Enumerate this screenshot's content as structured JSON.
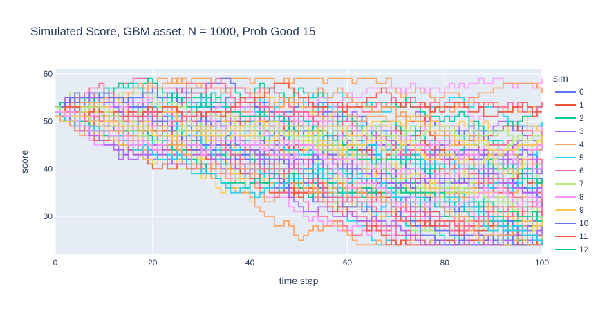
{
  "chart_data": {
    "type": "line",
    "title": "Simulated Score, GBM asset, N = 1000, Prob Good 15",
    "xlabel": "time step",
    "ylabel": "score",
    "xlim": [
      0,
      100
    ],
    "ylim": [
      22,
      61
    ],
    "x_ticks": [
      0,
      20,
      40,
      60,
      80,
      100
    ],
    "y_ticks": [
      30,
      40,
      50,
      60
    ],
    "grid": true,
    "legend": {
      "title": "sim",
      "placement": "right"
    },
    "legend_entries": [
      {
        "label": "0",
        "color": "#636efa"
      },
      {
        "label": "1",
        "color": "#EF553B"
      },
      {
        "label": "2",
        "color": "#00cc96"
      },
      {
        "label": "3",
        "color": "#ab63fa"
      },
      {
        "label": "4",
        "color": "#FFA15A"
      },
      {
        "label": "5",
        "color": "#19d3f3"
      },
      {
        "label": "6",
        "color": "#FF6692"
      },
      {
        "label": "7",
        "color": "#B6E880"
      },
      {
        "label": "8",
        "color": "#FF97FF"
      },
      {
        "label": "9",
        "color": "#FECB52"
      },
      {
        "label": "10",
        "color": "#636efa"
      },
      {
        "label": "11",
        "color": "#EF553B"
      },
      {
        "label": "12",
        "color": "#00cc96"
      }
    ],
    "series_count": 100,
    "series_start": [
      52,
      52,
      52,
      52,
      52,
      52,
      52,
      52,
      52,
      52,
      52,
      52,
      52,
      52,
      52,
      52,
      52,
      52,
      52,
      52
    ],
    "colors": [
      "#636efa",
      "#EF553B",
      "#00cc96",
      "#ab63fa",
      "#FFA15A",
      "#19d3f3",
      "#FF6692",
      "#B6E880",
      "#FF97FF",
      "#FECB52"
    ],
    "series_end_approx": [
      47,
      46,
      43,
      42,
      41,
      40,
      39,
      38,
      37,
      36,
      35,
      34,
      33,
      32,
      31,
      30,
      29,
      28,
      27,
      26,
      25,
      24
    ]
  },
  "colors": {
    "plot_bg": "#e5ecf6",
    "grid": "#ffffff",
    "text": "#2a3f5f"
  }
}
